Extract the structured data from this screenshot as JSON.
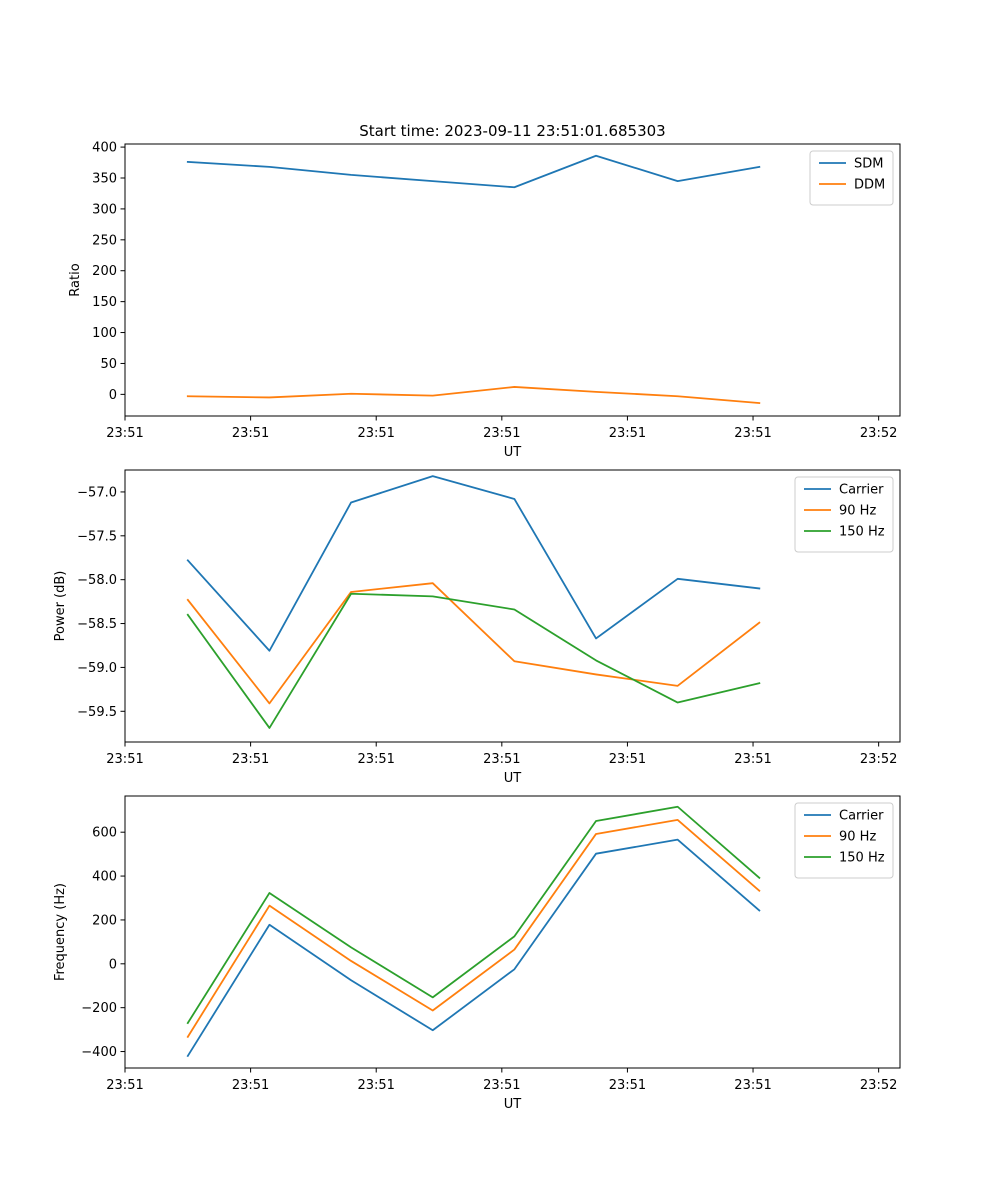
{
  "colors": {
    "blue": "#1f77b4",
    "orange": "#ff7f0e",
    "green": "#2ca02c",
    "axes": "#000000",
    "legend_border": "#cccccc"
  },
  "chart_data": [
    {
      "type": "line",
      "title": "Start time: 2023-09-11 23:51:01.685303",
      "xlabel": "UT",
      "ylabel": "Ratio",
      "xlim": [
        0,
        6.17
      ],
      "ylim": [
        -35,
        405
      ],
      "x": [
        0.5,
        1.15,
        1.8,
        2.45,
        3.1,
        3.75,
        4.4,
        5.05
      ],
      "x_ticks": [
        {
          "value": 0.0,
          "label": "23:51"
        },
        {
          "value": 1.0,
          "label": "23:51"
        },
        {
          "value": 2.0,
          "label": "23:51"
        },
        {
          "value": 3.0,
          "label": "23:51"
        },
        {
          "value": 4.0,
          "label": "23:51"
        },
        {
          "value": 5.0,
          "label": "23:51"
        },
        {
          "value": 6.0,
          "label": "23:52"
        }
      ],
      "y_ticks": [
        {
          "value": 0,
          "label": "0"
        },
        {
          "value": 50,
          "label": "50"
        },
        {
          "value": 100,
          "label": "100"
        },
        {
          "value": 150,
          "label": "150"
        },
        {
          "value": 200,
          "label": "200"
        },
        {
          "value": 250,
          "label": "250"
        },
        {
          "value": 300,
          "label": "300"
        },
        {
          "value": 350,
          "label": "350"
        },
        {
          "value": 400,
          "label": "400"
        }
      ],
      "legend_position": "upper-right",
      "series": [
        {
          "name": "SDM",
          "color_key": "blue",
          "values": [
            376,
            368,
            355,
            345,
            335,
            386,
            345,
            368
          ]
        },
        {
          "name": "DDM",
          "color_key": "orange",
          "values": [
            -3,
            -5,
            1,
            -2,
            12,
            4,
            -3,
            -14
          ]
        }
      ]
    },
    {
      "type": "line",
      "title": "",
      "xlabel": "UT",
      "ylabel": "Power (dB)",
      "xlim": [
        0,
        6.17
      ],
      "ylim": [
        -59.85,
        -56.75
      ],
      "x": [
        0.5,
        1.15,
        1.8,
        2.45,
        3.1,
        3.75,
        4.4,
        5.05
      ],
      "x_ticks": [
        {
          "value": 0.0,
          "label": "23:51"
        },
        {
          "value": 1.0,
          "label": "23:51"
        },
        {
          "value": 2.0,
          "label": "23:51"
        },
        {
          "value": 3.0,
          "label": "23:51"
        },
        {
          "value": 4.0,
          "label": "23:51"
        },
        {
          "value": 5.0,
          "label": "23:51"
        },
        {
          "value": 6.0,
          "label": "23:52"
        }
      ],
      "y_ticks": [
        {
          "value": -59.5,
          "label": "−59.5"
        },
        {
          "value": -59.0,
          "label": "−59.0"
        },
        {
          "value": -58.5,
          "label": "−58.5"
        },
        {
          "value": -58.0,
          "label": "−58.0"
        },
        {
          "value": -57.5,
          "label": "−57.5"
        },
        {
          "value": -57.0,
          "label": "−57.0"
        }
      ],
      "legend_position": "upper-right",
      "series": [
        {
          "name": "Carrier",
          "color_key": "blue",
          "values": [
            -57.78,
            -58.81,
            -57.12,
            -56.82,
            -57.08,
            -58.67,
            -57.99,
            -58.1
          ]
        },
        {
          "name": "90 Hz",
          "color_key": "orange",
          "values": [
            -58.23,
            -59.41,
            -58.14,
            -58.04,
            -58.93,
            -59.08,
            -59.21,
            -58.49
          ]
        },
        {
          "name": "150 Hz",
          "color_key": "green",
          "values": [
            -58.4,
            -59.69,
            -58.16,
            -58.19,
            -58.34,
            -58.92,
            -59.4,
            -59.18
          ]
        }
      ]
    },
    {
      "type": "line",
      "title": "",
      "xlabel": "UT",
      "ylabel": "Frequency (Hz)",
      "xlim": [
        0,
        6.17
      ],
      "ylim": [
        -475,
        765
      ],
      "x": [
        0.5,
        1.15,
        1.8,
        2.45,
        3.1,
        3.75,
        4.4,
        5.05
      ],
      "x_ticks": [
        {
          "value": 0.0,
          "label": "23:51"
        },
        {
          "value": 1.0,
          "label": "23:51"
        },
        {
          "value": 2.0,
          "label": "23:51"
        },
        {
          "value": 3.0,
          "label": "23:51"
        },
        {
          "value": 4.0,
          "label": "23:51"
        },
        {
          "value": 5.0,
          "label": "23:51"
        },
        {
          "value": 6.0,
          "label": "23:52"
        }
      ],
      "y_ticks": [
        {
          "value": -400,
          "label": "−400"
        },
        {
          "value": -200,
          "label": "−200"
        },
        {
          "value": 0,
          "label": "0"
        },
        {
          "value": 200,
          "label": "200"
        },
        {
          "value": 400,
          "label": "400"
        },
        {
          "value": 600,
          "label": "600"
        }
      ],
      "legend_position": "upper-right",
      "series": [
        {
          "name": "Carrier",
          "color_key": "blue",
          "values": [
            -420,
            178,
            -75,
            -303,
            -25,
            502,
            566,
            243
          ]
        },
        {
          "name": "90 Hz",
          "color_key": "orange",
          "values": [
            -333,
            265,
            13,
            -213,
            65,
            592,
            656,
            333
          ]
        },
        {
          "name": "150 Hz",
          "color_key": "green",
          "values": [
            -270,
            323,
            75,
            -153,
            125,
            651,
            716,
            392
          ]
        }
      ]
    }
  ]
}
